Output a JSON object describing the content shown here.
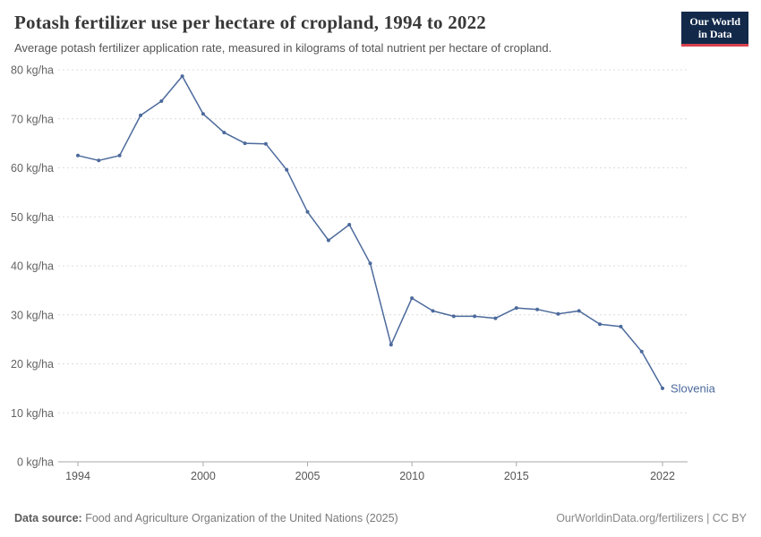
{
  "header": {
    "title": "Potash fertilizer use per hectare of cropland, 1994 to 2022",
    "subtitle": "Average potash fertilizer application rate, measured in kilograms of total nutrient per hectare of cropland.",
    "logo": {
      "line1": "Our World",
      "line2": "in Data"
    }
  },
  "footer": {
    "source_label": "Data source:",
    "source_text": " Food and Agriculture Organization of the United Nations (2025)",
    "credit_text": "OurWorldinData.org/fertilizers | CC BY"
  },
  "chart_data": {
    "type": "line",
    "title": "Potash fertilizer use per hectare of cropland, 1994 to 2022",
    "subtitle": "Average potash fertilizer application rate, measured in kilograms of total nutrient per hectare of cropland.",
    "xlabel": "",
    "ylabel": "kg/ha",
    "xlim": [
      1994,
      2022
    ],
    "ylim": [
      0,
      80
    ],
    "grid": "dashed-horizontal",
    "legend_position": "end-of-line-label",
    "x_ticks": [
      1994,
      2000,
      2005,
      2010,
      2015,
      2022
    ],
    "y_ticks": [
      0,
      10,
      20,
      30,
      40,
      50,
      60,
      70,
      80
    ],
    "y_tick_format": "{v} kg/ha",
    "series": [
      {
        "name": "Slovenia",
        "color": "#4c6a9c",
        "x": [
          1994,
          1995,
          1996,
          1997,
          1998,
          1999,
          2000,
          2001,
          2002,
          2003,
          2004,
          2005,
          2006,
          2007,
          2008,
          2009,
          2010,
          2011,
          2012,
          2013,
          2014,
          2015,
          2016,
          2017,
          2018,
          2019,
          2020,
          2021,
          2022
        ],
        "values": [
          62.5,
          61.5,
          62.5,
          70.7,
          73.6,
          78.7,
          71.0,
          67.2,
          65.0,
          64.9,
          59.6,
          51.0,
          45.2,
          48.4,
          40.5,
          23.9,
          33.4,
          30.8,
          29.7,
          29.7,
          29.3,
          31.4,
          31.1,
          30.2,
          30.8,
          28.1,
          27.6,
          22.5,
          15.0
        ]
      }
    ]
  }
}
